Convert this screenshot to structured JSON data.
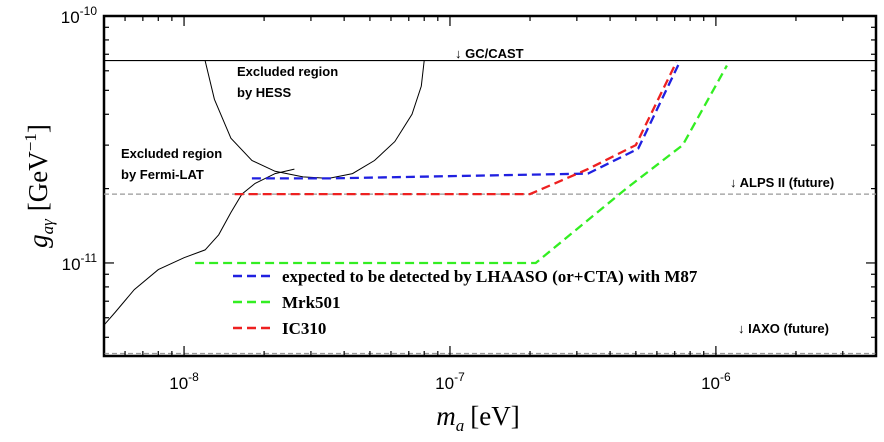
{
  "chart_data": {
    "type": "line",
    "xscale": "log",
    "yscale": "log",
    "xlim": [
      5e-09,
      4e-06
    ],
    "ylim": [
      4.2e-12,
      1e-10
    ],
    "xlabel": {
      "var": "m",
      "sub": "a",
      "unit": "[eV]"
    },
    "ylabel": {
      "var": "g",
      "sub": "aγ",
      "unit": "[GeV",
      "unit_exp": "−1",
      "unit_close": "]"
    },
    "x_ticks": [
      {
        "value": 1e-08,
        "base": "10",
        "exp": "-8"
      },
      {
        "value": 1e-07,
        "base": "10",
        "exp": "-7"
      },
      {
        "value": 1e-06,
        "base": "10",
        "exp": "-6"
      }
    ],
    "y_ticks": [
      {
        "value": 1e-11,
        "base": "10",
        "exp": "-11"
      },
      {
        "value": 1e-10,
        "base": "10",
        "exp": "-10"
      }
    ],
    "series": [
      {
        "name": "expected to be detected by LHAASO (or+CTA) with M87",
        "color": "#2020e0",
        "dash": true,
        "x": [
          1.8e-08,
          3.5e-08,
          3.3e-07,
          5.1e-07,
          7.3e-07
        ],
        "y": [
          2.2e-11,
          2.2e-11,
          2.3e-11,
          2.9e-11,
          6.5e-11
        ]
      },
      {
        "name": "Mrk501",
        "color": "#33ee22",
        "dash": true,
        "x": [
          1.1e-08,
          2.1e-07,
          4.6e-07,
          7.5e-07,
          1.1e-06
        ],
        "y": [
          1e-11,
          1e-11,
          2e-11,
          3e-11,
          6.3e-11
        ]
      },
      {
        "name": "IC310",
        "color": "#ee2020",
        "dash": true,
        "x": [
          1.55e-08,
          2e-07,
          3.3e-07,
          5e-07,
          7.1e-07
        ],
        "y": [
          1.9e-11,
          1.9e-11,
          2.4e-11,
          3e-11,
          6.5e-11
        ]
      }
    ],
    "limits": [
      {
        "name": "GC/CAST",
        "value": 6.6e-11,
        "style": "solid",
        "label": "↓ GC/CAST"
      },
      {
        "name": "ALPS II (future)",
        "value": 1.9e-11,
        "style": "dashed",
        "label": "↓ ALPS II (future)"
      },
      {
        "name": "IAXO (future)",
        "value": 4.3e-12,
        "style": "dashed",
        "label": "↓ IAXO (future)"
      }
    ],
    "excluded_regions": [
      {
        "name": "HESS",
        "label_lines": [
          "Excluded region",
          "by HESS"
        ],
        "boundary_x": [
          1.2e-08,
          1.3e-08,
          1.5e-08,
          1.8e-08,
          2.2e-08,
          2.8e-08,
          3.5e-08,
          4.3e-08,
          5.2e-08,
          6.2e-08,
          7.2e-08,
          7.8e-08,
          8e-08
        ],
        "boundary_y": [
          6.6e-11,
          4.6e-11,
          3.2e-11,
          2.6e-11,
          2.35e-11,
          2.23e-11,
          2.2e-11,
          2.3e-11,
          2.6e-11,
          3.1e-11,
          4e-11,
          5.2e-11,
          6.6e-11
        ]
      },
      {
        "name": "Fermi-LAT",
        "label_lines": [
          "Excluded region",
          "by Fermi-LAT"
        ],
        "boundary_x": [
          5e-09,
          5.5e-09,
          6.5e-09,
          8e-09,
          1e-08,
          1.2e-08,
          1.35e-08,
          1.5e-08,
          1.65e-08,
          1.85e-08,
          2.2e-08,
          2.6e-08
        ],
        "boundary_y": [
          5.6e-12,
          6.3e-12,
          7.8e-12,
          9.4e-12,
          1.05e-11,
          1.13e-11,
          1.3e-11,
          1.6e-11,
          1.9e-11,
          2.1e-11,
          2.3e-11,
          2.4e-11
        ]
      }
    ]
  }
}
